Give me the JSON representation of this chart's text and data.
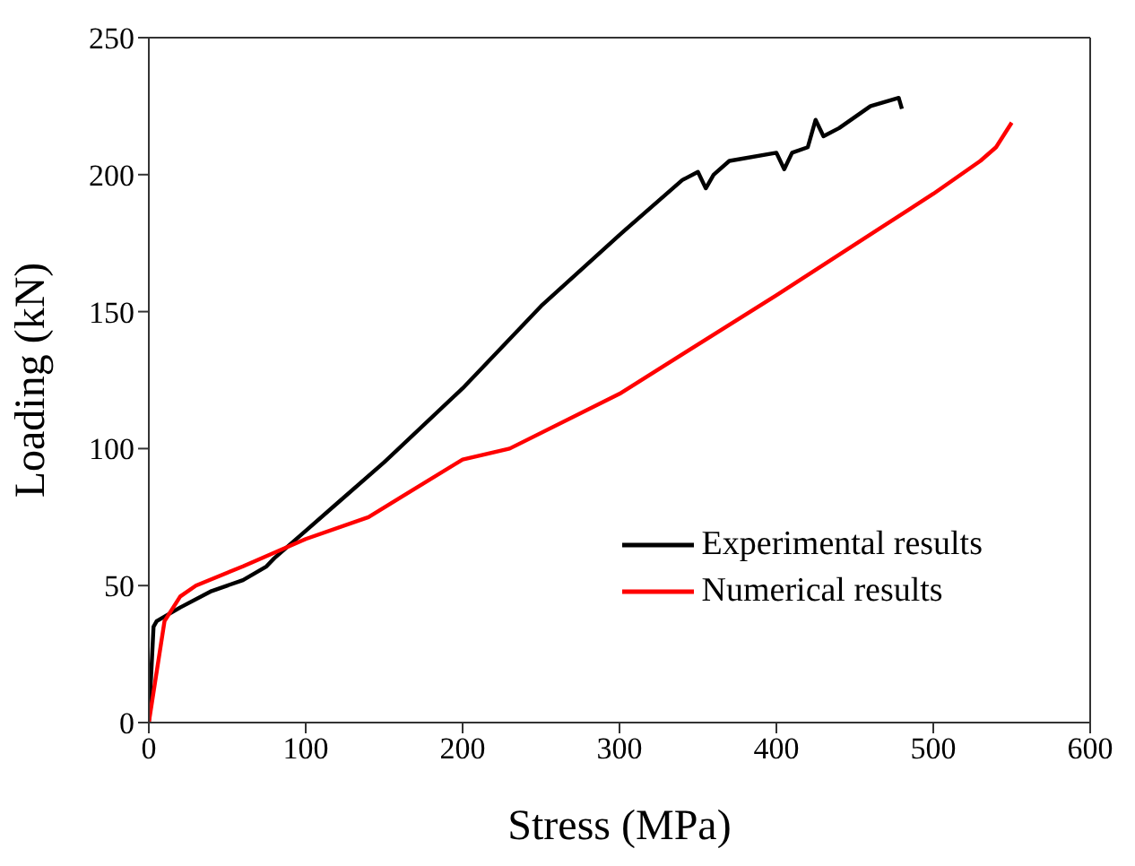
{
  "chart_data": {
    "type": "line",
    "xlabel": "Stress (MPa)",
    "ylabel": "Loading (kN)",
    "xlim": [
      0,
      600
    ],
    "xticks": [
      0,
      100,
      200,
      300,
      400,
      500,
      600
    ],
    "ylim": [
      0,
      250
    ],
    "yticks": [
      0,
      50,
      100,
      150,
      200,
      250
    ],
    "grid": false,
    "legend": "bottom right",
    "marker": "none",
    "line_style": "solid",
    "series": [
      {
        "name": "Experimental results",
        "color": "#000000",
        "x": [
          0,
          3,
          5,
          20,
          40,
          60,
          75,
          80,
          100,
          120,
          150,
          200,
          250,
          300,
          340,
          350,
          355,
          360,
          370,
          400,
          405,
          410,
          420,
          425,
          430,
          440,
          460,
          478,
          480
        ],
        "values": [
          0,
          35,
          37,
          42,
          48,
          52,
          57,
          60,
          70,
          80,
          95,
          122,
          152,
          178,
          198,
          201,
          195,
          200,
          205,
          208,
          202,
          208,
          210,
          220,
          214,
          217,
          225,
          228,
          224
        ]
      },
      {
        "name": "Numerical results",
        "color": "#ff0000",
        "x": [
          0,
          10,
          20,
          30,
          60,
          100,
          140,
          160,
          200,
          230,
          300,
          400,
          500,
          530,
          540,
          550
        ],
        "values": [
          0,
          37,
          46,
          50,
          57,
          67,
          75,
          82,
          96,
          100,
          120,
          156,
          193,
          205,
          210,
          219
        ]
      }
    ]
  }
}
